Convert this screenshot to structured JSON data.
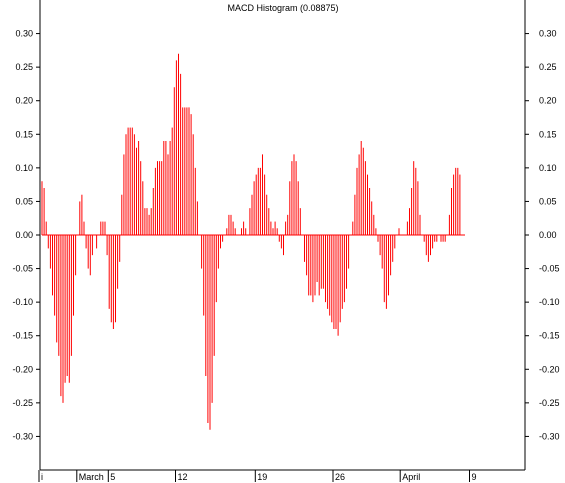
{
  "chart_data": {
    "type": "bar",
    "title": "MACD Histogram (0.08875)",
    "xlabel": "",
    "ylabel": "",
    "ylim": [
      -0.35,
      0.35
    ],
    "y_ticks": [
      0.3,
      0.25,
      0.2,
      0.15,
      0.1,
      0.05,
      0.0,
      -0.05,
      -0.1,
      -0.15,
      -0.2,
      -0.25,
      -0.3
    ],
    "y_tick_labels": [
      "0.30",
      "0.25",
      "0.20",
      "0.15",
      "0.10",
      "0.05",
      "0.00",
      "-0.05",
      "-0.10",
      "-0.15",
      "-0.20",
      "-0.25",
      "-0.30"
    ],
    "x_tick_labels": [
      {
        "label": "i",
        "index": 0
      },
      {
        "label": "March",
        "index": 18
      },
      {
        "label": "5",
        "index": 33
      },
      {
        "label": "12",
        "index": 65
      },
      {
        "label": "19",
        "index": 103
      },
      {
        "label": "26",
        "index": 140
      },
      {
        "label": "April",
        "index": 172
      },
      {
        "label": "9",
        "index": 205
      }
    ],
    "bar_color": "#ff0000",
    "grid": false,
    "values": [
      0.08,
      0.07,
      0.02,
      -0.02,
      -0.05,
      -0.09,
      -0.12,
      -0.16,
      -0.18,
      -0.24,
      -0.25,
      -0.22,
      -0.21,
      -0.22,
      -0.18,
      -0.12,
      -0.06,
      0.0,
      0.05,
      0.06,
      0.02,
      -0.02,
      -0.05,
      -0.06,
      -0.03,
      0.0,
      -0.02,
      0.0,
      0.02,
      0.02,
      0.02,
      -0.03,
      -0.11,
      -0.13,
      -0.14,
      -0.13,
      -0.08,
      -0.04,
      0.06,
      0.12,
      0.15,
      0.16,
      0.16,
      0.16,
      0.15,
      0.13,
      0.14,
      0.11,
      0.08,
      0.04,
      0.04,
      0.03,
      0.04,
      0.07,
      0.1,
      0.11,
      0.11,
      0.11,
      0.14,
      0.14,
      0.12,
      0.14,
      0.16,
      0.22,
      0.26,
      0.27,
      0.24,
      0.19,
      0.19,
      0.19,
      0.19,
      0.18,
      0.15,
      0.1,
      0.05,
      0.0,
      -0.05,
      -0.12,
      -0.21,
      -0.28,
      -0.29,
      -0.25,
      -0.18,
      -0.1,
      -0.05,
      -0.02,
      -0.01,
      0.0,
      0.01,
      0.03,
      0.03,
      0.02,
      0.01,
      0.0,
      0.0,
      0.01,
      0.02,
      0.01,
      0.0,
      0.04,
      0.06,
      0.08,
      0.09,
      0.1,
      0.1,
      0.12,
      0.09,
      0.06,
      0.04,
      0.02,
      0.01,
      0.02,
      0.01,
      -0.01,
      -0.02,
      -0.03,
      0.02,
      0.03,
      0.08,
      0.11,
      0.12,
      0.11,
      0.08,
      0.04,
      0.0,
      -0.04,
      -0.06,
      -0.09,
      -0.09,
      -0.1,
      -0.09,
      -0.07,
      -0.09,
      -0.08,
      -0.08,
      -0.1,
      -0.11,
      -0.12,
      -0.13,
      -0.14,
      -0.14,
      -0.15,
      -0.13,
      -0.11,
      -0.1,
      -0.08,
      -0.05,
      0.0,
      0.02,
      0.06,
      0.1,
      0.12,
      0.14,
      0.13,
      0.11,
      0.09,
      0.07,
      0.05,
      0.03,
      0.01,
      -0.01,
      -0.03,
      -0.05,
      -0.1,
      -0.11,
      -0.09,
      -0.06,
      -0.04,
      -0.02,
      0.0,
      0.01,
      0.0,
      0.0,
      0.0,
      0.02,
      0.04,
      0.07,
      0.11,
      0.1,
      0.08,
      0.03,
      0.0,
      -0.01,
      -0.03,
      -0.04,
      -0.03,
      -0.02,
      -0.01,
      -0.01,
      0.0,
      -0.01,
      -0.01,
      -0.01,
      0.0,
      0.03,
      0.07,
      0.09,
      0.1,
      0.1,
      0.09
    ]
  }
}
